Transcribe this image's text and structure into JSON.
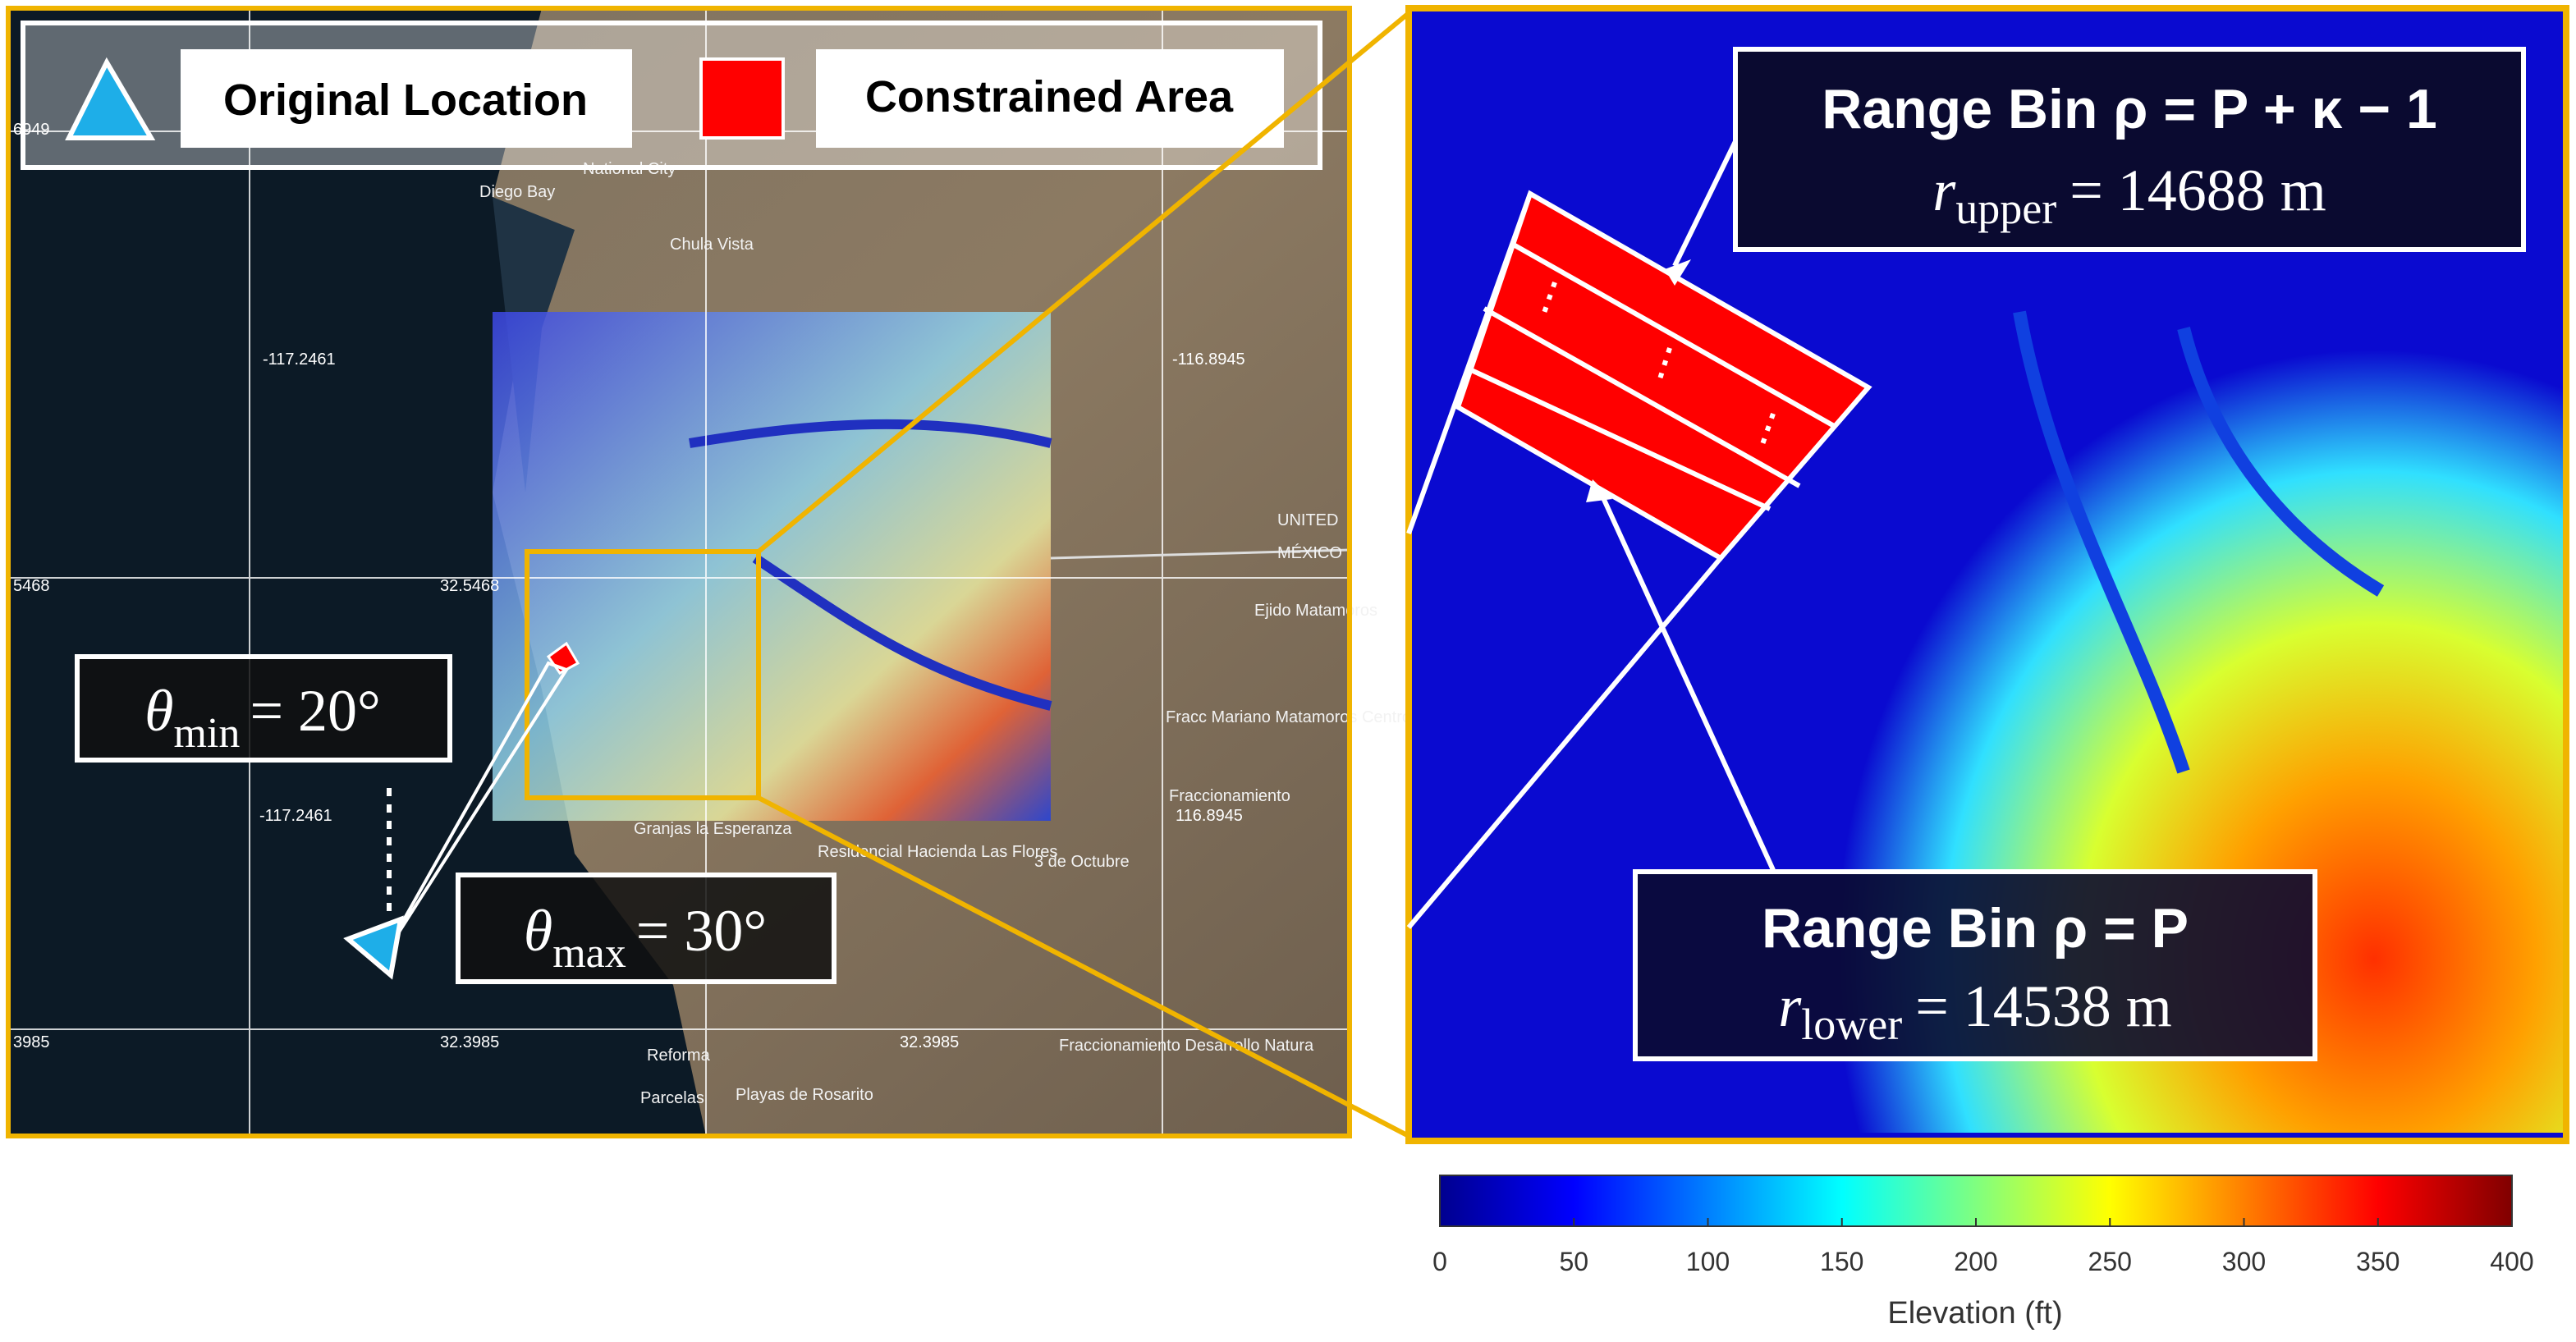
{
  "legend": {
    "items": [
      "Original Location",
      "Constrained Area"
    ]
  },
  "map": {
    "grid_labels": [
      "6949",
      "-117.2461",
      "-116.8945",
      "5468",
      "32.5468",
      "-117.2461",
      "116.8945",
      "3985",
      "32.3985",
      "32.3985"
    ],
    "places": [
      "Diego Bay",
      "National City",
      "Chula Vista",
      "UNITED",
      "MÉXICO",
      "Ejido Matamoros",
      "Fracc Mariano Matamoros Centro",
      "Fraccionamiento",
      "Granjas la Esperanza",
      "Residencial Hacienda Las Flores",
      "3 de Octubre",
      "Reforma",
      "Parcelas",
      "Playas de Rosarito",
      "Fraccionamiento Desarrollo Natura"
    ],
    "theta_min": {
      "symbol": "θ",
      "subscript": "min",
      "value": "= 20°"
    },
    "theta_max": {
      "symbol": "θ",
      "subscript": "max",
      "value": "= 30°"
    }
  },
  "zoom": {
    "upper": {
      "title": "Range Bin ρ = P + κ − 1",
      "symbol": "r",
      "subscript": "upper",
      "value": "= 14688 m"
    },
    "lower": {
      "title": "Range Bin ρ = P",
      "symbol": "r",
      "subscript": "lower",
      "value": "= 14538 m"
    }
  },
  "colorbar": {
    "label": "Elevation (ft)",
    "lim": [
      0,
      400
    ],
    "ticks": [
      0,
      50,
      100,
      150,
      200,
      250,
      300,
      350,
      400
    ]
  }
}
